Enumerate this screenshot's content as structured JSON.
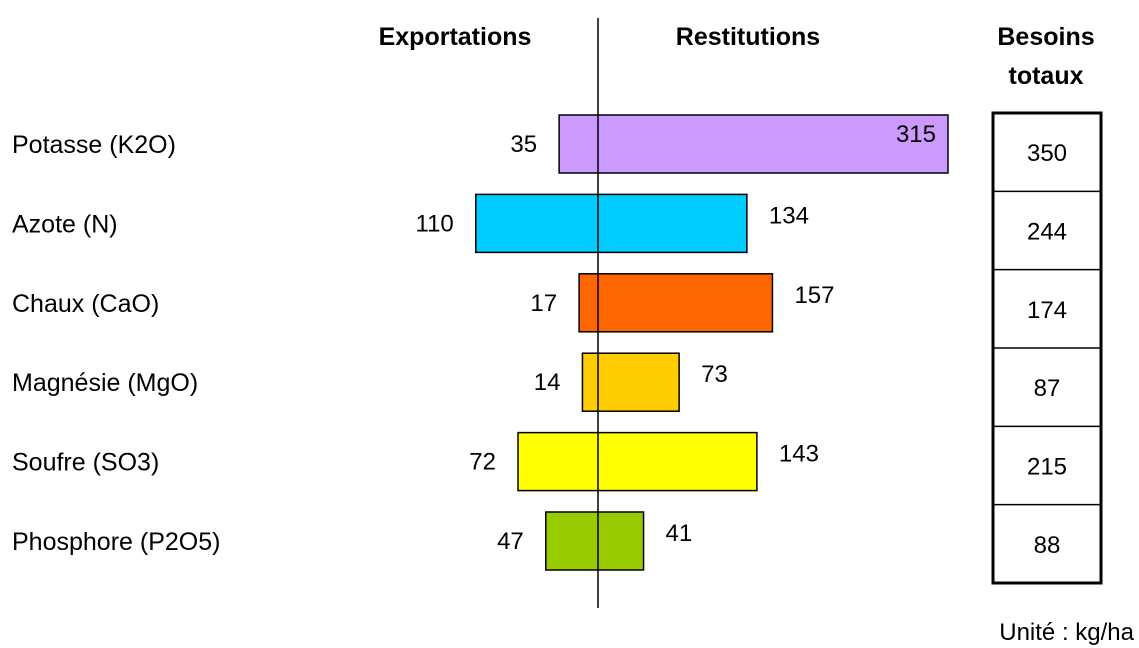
{
  "chart_data": {
    "type": "bar",
    "orientation": "diverging-horizontal",
    "headers": {
      "left": "Exportations",
      "right": "Restitutions",
      "totals_line1": "Besoins",
      "totals_line2": "totaux"
    },
    "categories": [
      "Potasse (K2O)",
      "Azote (N)",
      "Chaux (CaO)",
      "Magnésie (MgO)",
      "Soufre (SO3)",
      "Phosphore (P2O5)"
    ],
    "series": [
      {
        "name": "Exportations",
        "values": [
          35,
          110,
          17,
          14,
          72,
          47
        ]
      },
      {
        "name": "Restitutions",
        "values": [
          315,
          134,
          157,
          73,
          143,
          41
        ]
      }
    ],
    "totals": [
      350,
      244,
      174,
      87,
      215,
      88
    ],
    "colors": [
      "#cc99ff",
      "#00ccff",
      "#ff6600",
      "#ffcc00",
      "#ffff00",
      "#99cc00"
    ],
    "unit": "Unité : kg/ha"
  }
}
